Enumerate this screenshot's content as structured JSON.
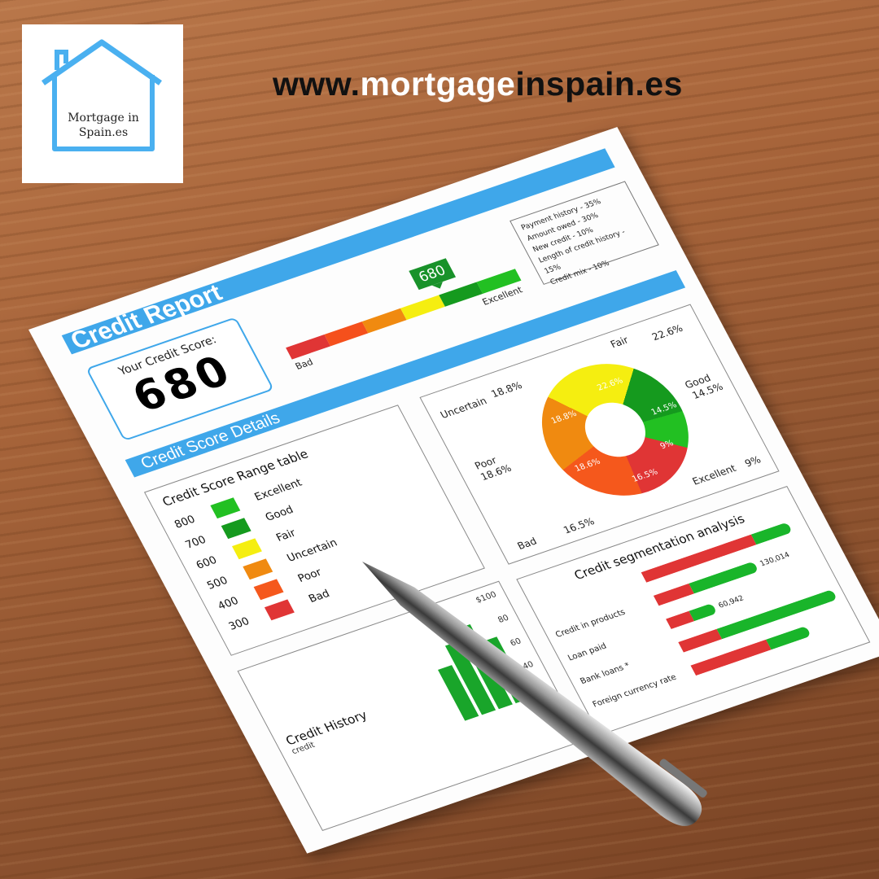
{
  "logo": {
    "text_line1": "Mortgage in",
    "text_line2": "Spain.es",
    "color": "#4ab0f0"
  },
  "url": {
    "prefix": "www.",
    "highlight": "mortgage",
    "suffix": "inspain.es"
  },
  "report": {
    "title": "Credit Report",
    "score_label": "Your Credit Score:",
    "score": "680",
    "gauge": {
      "marker": "680",
      "low_label": "Bad",
      "high_label": "Excellent",
      "colors": [
        "#e03535",
        "#f5501c",
        "#f08a10",
        "#f5ee10",
        "#159a1e",
        "#22c022"
      ]
    },
    "factors": [
      "Payment history - 35%",
      "Amount owed - 30%",
      "New credit - 10%",
      "Length of credit history - 15%",
      "Credit mix - 10%"
    ],
    "details_title": "Credit Score Details",
    "range_table": {
      "title": "Credit Score Range table",
      "rows": [
        {
          "score": "800",
          "label": "Excellent",
          "color": "#22c022"
        },
        {
          "score": "700",
          "label": "Good",
          "color": "#159a1e"
        },
        {
          "score": "600",
          "label": "Fair",
          "color": "#f5ee10"
        },
        {
          "score": "500",
          "label": "Uncertain",
          "color": "#f08a10"
        },
        {
          "score": "400",
          "label": "Poor",
          "color": "#f5581c"
        },
        {
          "score": "300",
          "label": "Bad",
          "color": "#e03535"
        }
      ]
    },
    "donut": {
      "slices": [
        {
          "label": "Fair",
          "value": "22.6%",
          "color": "#f5ee10"
        },
        {
          "label": "Good",
          "value": "14.5%",
          "color": "#159a1e"
        },
        {
          "label": "Excellent",
          "value": "9%",
          "color": "#22c022"
        },
        {
          "label": "Bad",
          "value": "16.5%",
          "color": "#e03535"
        },
        {
          "label": "Poor",
          "value": "18.6%",
          "color": "#f5581c"
        },
        {
          "label": "Uncertain",
          "value": "18.8%",
          "color": "#f08a10"
        }
      ]
    },
    "history": {
      "title": "Credit History",
      "subtitle": "credit",
      "axis": [
        "$100",
        "80",
        "60",
        "40"
      ]
    },
    "segmentation": {
      "title": "Credit segmentation analysis",
      "rows": [
        {
          "label": "",
          "red": 75,
          "green": 25,
          "value": ""
        },
        {
          "label": "Credit in products",
          "red": 35,
          "green": 65,
          "value": "130,014"
        },
        {
          "label": "Loan paid",
          "red": 50,
          "green": 50,
          "value": "60,942"
        },
        {
          "label": "Bank loans *",
          "red": 25,
          "green": 75,
          "value": ""
        },
        {
          "label": "Foreign currency rate",
          "red": 65,
          "green": 35,
          "value": ""
        }
      ]
    }
  }
}
